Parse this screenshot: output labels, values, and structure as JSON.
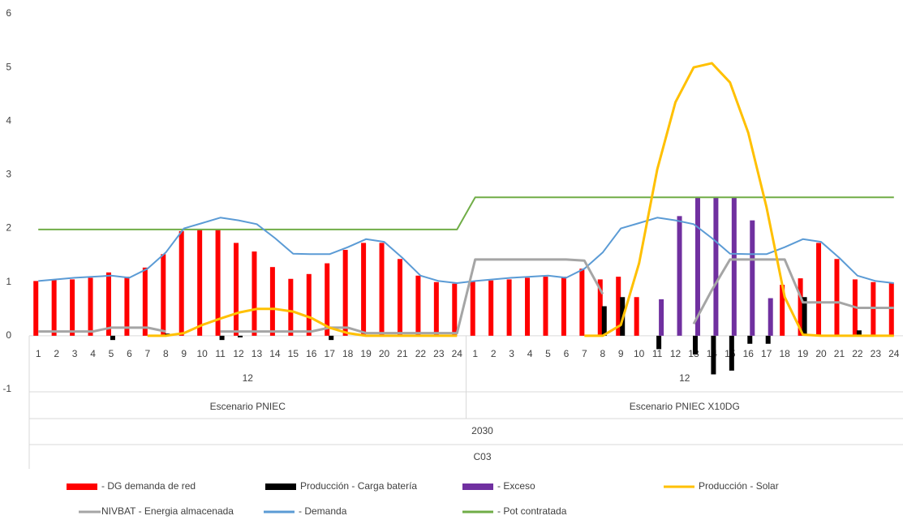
{
  "chart_data": {
    "type": "combo",
    "categories": [
      "1",
      "2",
      "3",
      "4",
      "5",
      "6",
      "7",
      "8",
      "9",
      "10",
      "11",
      "12",
      "13",
      "14",
      "15",
      "16",
      "17",
      "18",
      "19",
      "20",
      "21",
      "22",
      "23",
      "24",
      "1",
      "2",
      "3",
      "4",
      "5",
      "6",
      "7",
      "8",
      "9",
      "10",
      "11",
      "12",
      "13",
      "14",
      "15",
      "16",
      "17",
      "18",
      "19",
      "20",
      "21",
      "22",
      "23",
      "24"
    ],
    "category_groups": [
      {
        "day": "12",
        "scenario": "Escenario PNIEC"
      },
      {
        "day": "12",
        "scenario": "Escenario PNIEC X10DG"
      }
    ],
    "year": "2030",
    "case": "C03",
    "ylim": [
      -1,
      6
    ],
    "yticks": [
      -1,
      0,
      1,
      2,
      3,
      4,
      5,
      6
    ],
    "grid": false,
    "series": [
      {
        "name": "- DG demanda de red",
        "kind": "bar",
        "color": "#ff0000",
        "values": [
          1.02,
          1.05,
          1.05,
          1.08,
          1.18,
          1.1,
          1.27,
          1.52,
          1.95,
          1.97,
          1.97,
          1.73,
          1.57,
          1.28,
          1.06,
          1.15,
          1.35,
          1.6,
          1.73,
          1.73,
          1.43,
          1.12,
          1.0,
          0.97,
          1.02,
          1.03,
          1.05,
          1.08,
          1.1,
          1.1,
          1.25,
          1.05,
          1.1,
          0.72,
          null,
          null,
          null,
          null,
          null,
          null,
          null,
          0.95,
          1.07,
          1.73,
          1.43,
          1.05,
          1.0,
          0.98
        ]
      },
      {
        "name": "Producción - Carga batería",
        "kind": "bar",
        "color": "#000000",
        "values": [
          null,
          null,
          null,
          null,
          -0.08,
          null,
          null,
          0.04,
          null,
          null,
          -0.08,
          -0.03,
          null,
          null,
          null,
          null,
          -0.08,
          null,
          null,
          null,
          null,
          null,
          null,
          null,
          null,
          null,
          null,
          null,
          null,
          null,
          null,
          0.55,
          0.72,
          null,
          -0.25,
          null,
          -0.35,
          -0.72,
          -0.65,
          -0.15,
          -0.15,
          null,
          0.72,
          null,
          null,
          0.1,
          null,
          null
        ]
      },
      {
        "name": "- Exceso",
        "kind": "bar",
        "color": "#7030a0",
        "values": [
          null,
          null,
          null,
          null,
          null,
          null,
          null,
          null,
          null,
          null,
          null,
          null,
          null,
          null,
          null,
          null,
          null,
          null,
          null,
          null,
          null,
          null,
          null,
          null,
          null,
          null,
          null,
          null,
          null,
          null,
          null,
          null,
          null,
          null,
          0.68,
          2.23,
          2.58,
          2.58,
          2.58,
          2.15,
          0.7,
          null,
          null,
          null,
          null,
          null,
          null,
          null
        ]
      },
      {
        "name": "Producción - Solar",
        "kind": "line",
        "color": "#ffc000",
        "values": [
          null,
          null,
          null,
          null,
          null,
          null,
          0,
          0,
          0.05,
          0.2,
          0.32,
          0.43,
          0.5,
          0.5,
          0.45,
          0.33,
          0.15,
          0.05,
          0,
          0,
          0,
          0,
          0,
          0,
          null,
          null,
          null,
          null,
          null,
          null,
          0,
          0,
          0.2,
          1.35,
          3.1,
          4.35,
          5.0,
          5.08,
          4.72,
          3.78,
          2.4,
          0.72,
          0.02,
          0,
          0,
          0,
          0,
          0
        ]
      },
      {
        "name": "NIVBAT - Energia almacenada",
        "kind": "line",
        "color": "#a5a5a5",
        "values": [
          0.08,
          0.08,
          0.08,
          0.08,
          0.15,
          0.15,
          0.15,
          0.08,
          null,
          null,
          0.08,
          0.08,
          0.08,
          0.08,
          0.08,
          0.08,
          0.15,
          0.15,
          0.05,
          0.05,
          0.05,
          0.05,
          0.05,
          0.05,
          1.42,
          1.42,
          1.42,
          1.42,
          1.42,
          1.42,
          1.4,
          0.78,
          null,
          null,
          null,
          null,
          0.22,
          0.85,
          1.42,
          1.42,
          1.42,
          1.42,
          0.62,
          0.62,
          0.62,
          0.52,
          0.52,
          0.52
        ]
      },
      {
        "name": "- Demanda",
        "kind": "line",
        "color": "#5b9bd5",
        "values": [
          1.02,
          1.05,
          1.08,
          1.1,
          1.12,
          1.08,
          1.25,
          1.55,
          2.0,
          2.1,
          2.2,
          2.15,
          2.08,
          1.82,
          1.53,
          1.52,
          1.52,
          1.65,
          1.8,
          1.75,
          1.45,
          1.12,
          1.02,
          0.98,
          1.02,
          1.05,
          1.08,
          1.1,
          1.12,
          1.08,
          1.25,
          1.55,
          2.0,
          2.1,
          2.2,
          2.15,
          2.08,
          1.82,
          1.53,
          1.52,
          1.52,
          1.65,
          1.8,
          1.75,
          1.45,
          1.12,
          1.02,
          0.98
        ]
      },
      {
        "name": "- Pot contratada",
        "kind": "line",
        "color": "#70ad47",
        "values": [
          1.98,
          1.98,
          1.98,
          1.98,
          1.98,
          1.98,
          1.98,
          1.98,
          1.98,
          1.98,
          1.98,
          1.98,
          1.98,
          1.98,
          1.98,
          1.98,
          1.98,
          1.98,
          1.98,
          1.98,
          1.98,
          1.98,
          1.98,
          1.98,
          2.58,
          2.58,
          2.58,
          2.58,
          2.58,
          2.58,
          2.58,
          2.58,
          2.58,
          2.58,
          2.58,
          2.58,
          2.58,
          2.58,
          2.58,
          2.58,
          2.58,
          2.58,
          2.58,
          2.58,
          2.58,
          2.58,
          2.58,
          2.58
        ]
      }
    ]
  }
}
